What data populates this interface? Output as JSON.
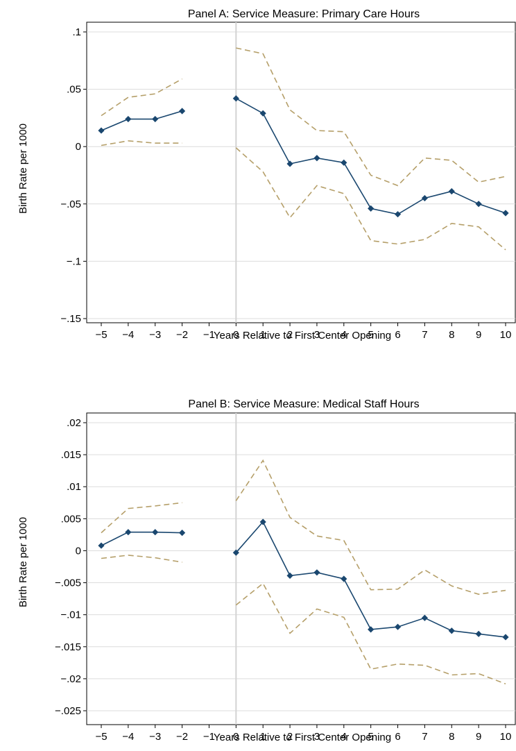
{
  "colors": {
    "estimate": "#1a476f",
    "ci": "#b59f69",
    "grid": "#dcdcdc",
    "zero_line": "#d3d3d3",
    "axis": "#000000",
    "background": "#ffffff"
  },
  "chart_data": [
    {
      "type": "line",
      "title": "Panel A: Service Measure: Primary Care Hours",
      "xlabel": "Years Relative to First Center Opening",
      "ylabel": "Birth Rate per 1000",
      "xlim": [
        -5,
        10
      ],
      "ylim": [
        -0.15,
        0.1
      ],
      "x_ticks": [
        -5,
        -4,
        -3,
        -2,
        -1,
        0,
        1,
        2,
        3,
        4,
        5,
        6,
        7,
        8,
        9,
        10
      ],
      "x_tick_labels": [
        "−5",
        "−4",
        "−3",
        "−2",
        "−1",
        "0",
        "1",
        "2",
        "3",
        "4",
        "5",
        "6",
        "7",
        "8",
        "9",
        "10"
      ],
      "y_ticks": [
        -0.15,
        -0.1,
        -0.05,
        0,
        0.05,
        0.1
      ],
      "y_tick_labels": [
        "−.15",
        "−.1",
        "−.05",
        "0",
        ".05",
        ".1"
      ],
      "vertical_line_x": 0,
      "grid": true,
      "segments": [
        {
          "x": [
            -5,
            -4,
            -3,
            -2
          ],
          "estimate": [
            0.014,
            0.024,
            0.024,
            0.031
          ],
          "upper": [
            0.027,
            0.043,
            0.046,
            0.059
          ],
          "lower": [
            0.001,
            0.005,
            0.003,
            0.003
          ]
        },
        {
          "x": [
            0,
            1,
            2,
            3,
            4,
            5,
            6,
            7,
            8,
            9,
            10
          ],
          "estimate": [
            0.042,
            0.029,
            -0.015,
            -0.01,
            -0.014,
            -0.054,
            -0.059,
            -0.045,
            -0.039,
            -0.05,
            -0.058
          ],
          "upper": [
            0.086,
            0.081,
            0.032,
            0.014,
            0.013,
            -0.025,
            -0.034,
            -0.01,
            -0.012,
            -0.031,
            -0.026
          ],
          "lower": [
            -0.001,
            -0.022,
            -0.062,
            -0.034,
            -0.041,
            -0.082,
            -0.085,
            -0.081,
            -0.067,
            -0.07,
            -0.09
          ]
        }
      ]
    },
    {
      "type": "line",
      "title": "Panel B: Service Measure: Medical Staff Hours",
      "xlabel": "Years Relative to First Center Opening",
      "ylabel": "Birth Rate per 1000",
      "xlim": [
        -5,
        10
      ],
      "ylim": [
        -0.025,
        0.02
      ],
      "x_ticks": [
        -5,
        -4,
        -3,
        -2,
        -1,
        0,
        1,
        2,
        3,
        4,
        5,
        6,
        7,
        8,
        9,
        10
      ],
      "x_tick_labels": [
        "−5",
        "−4",
        "−3",
        "−2",
        "−1",
        "0",
        "1",
        "2",
        "3",
        "4",
        "5",
        "6",
        "7",
        "8",
        "9",
        "10"
      ],
      "y_ticks": [
        -0.025,
        -0.02,
        -0.015,
        -0.01,
        -0.005,
        0,
        0.005,
        0.01,
        0.015,
        0.02
      ],
      "y_tick_labels": [
        "−.025",
        "−.02",
        "−.015",
        "−.01",
        "−.005",
        "0",
        ".005",
        ".01",
        ".015",
        ".02"
      ],
      "vertical_line_x": 0,
      "grid": true,
      "segments": [
        {
          "x": [
            -5,
            -4,
            -3,
            -2
          ],
          "estimate": [
            0.0008,
            0.0029,
            0.0029,
            0.0028
          ],
          "upper": [
            0.0028,
            0.0066,
            0.007,
            0.0075
          ],
          "lower": [
            -0.0012,
            -0.0007,
            -0.0011,
            -0.0018
          ]
        },
        {
          "x": [
            0,
            1,
            2,
            3,
            4,
            5,
            6,
            7,
            8,
            9,
            10
          ],
          "estimate": [
            -0.0003,
            0.0045,
            -0.0039,
            -0.0034,
            -0.0044,
            -0.0123,
            -0.0119,
            -0.0105,
            -0.0125,
            -0.013,
            -0.0135
          ],
          "upper": [
            0.0078,
            0.0141,
            0.0052,
            0.0023,
            0.0016,
            -0.0061,
            -0.006,
            -0.003,
            -0.0055,
            -0.0068,
            -0.0062
          ],
          "lower": [
            -0.0085,
            -0.0051,
            -0.0129,
            -0.0091,
            -0.0104,
            -0.0185,
            -0.0177,
            -0.0179,
            -0.0194,
            -0.0192,
            -0.0208
          ]
        }
      ]
    }
  ]
}
